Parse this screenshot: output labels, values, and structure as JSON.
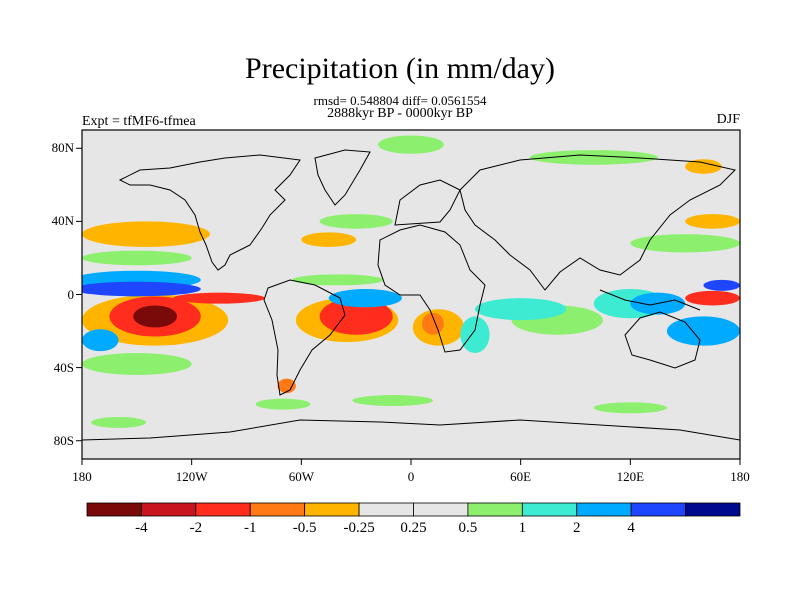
{
  "title": "Precipitation (in mm/day)",
  "stats": "rmsd= 0.548804 diff= 0.0561554",
  "period": "2888kyr BP - 0000kyr BP",
  "experiment": "Expt = tfMF6-tfmea",
  "season": "DJF",
  "lat_ticks": [
    {
      "value": 80,
      "label": "80N"
    },
    {
      "value": 40,
      "label": "40N"
    },
    {
      "value": 0,
      "label": "0"
    },
    {
      "value": -40,
      "label": "40S"
    },
    {
      "value": -80,
      "label": "80S"
    }
  ],
  "lon_ticks": [
    {
      "value": -180,
      "label": "180"
    },
    {
      "value": -120,
      "label": "120W"
    },
    {
      "value": -60,
      "label": "60W"
    },
    {
      "value": 0,
      "label": "0"
    },
    {
      "value": 60,
      "label": "60E"
    },
    {
      "value": 120,
      "label": "120E"
    },
    {
      "value": 180,
      "label": "180"
    }
  ],
  "colorbar": {
    "colors": [
      "#7a0a0a",
      "#c8141e",
      "#ff2d1e",
      "#ff7a14",
      "#ffb400",
      "#e6e6e6",
      "#e6e6e6",
      "#8cf06e",
      "#3cebd2",
      "#00aaff",
      "#1e46ff",
      "#000a8c"
    ],
    "labels": [
      "-4",
      "-2",
      "-1",
      "-0.5",
      "-0.25",
      "0.25",
      "0.5",
      "1",
      "2",
      "4"
    ]
  },
  "map": {
    "background": "#e6e6e6",
    "anomalies": [
      {
        "lon": -140,
        "lat": -12,
        "rx": 12,
        "ry": 6,
        "color": "#7a0a0a"
      },
      {
        "lon": -140,
        "lat": -12,
        "rx": 25,
        "ry": 11,
        "color": "#ff2d1e"
      },
      {
        "lon": -140,
        "lat": -14,
        "rx": 40,
        "ry": 14,
        "color": "#ffb400"
      },
      {
        "lon": -150,
        "lat": 3,
        "rx": 35,
        "ry": 4,
        "color": "#1e46ff"
      },
      {
        "lon": -150,
        "lat": 8,
        "rx": 35,
        "ry": 5,
        "color": "#00aaff"
      },
      {
        "lon": -150,
        "lat": 20,
        "rx": 30,
        "ry": 4,
        "color": "#8cf06e"
      },
      {
        "lon": -145,
        "lat": 33,
        "rx": 35,
        "ry": 7,
        "color": "#ffb400"
      },
      {
        "lon": -170,
        "lat": -25,
        "rx": 10,
        "ry": 6,
        "color": "#00aaff"
      },
      {
        "lon": -150,
        "lat": -38,
        "rx": 30,
        "ry": 6,
        "color": "#8cf06e"
      },
      {
        "lon": -105,
        "lat": -2,
        "rx": 25,
        "ry": 3,
        "color": "#ff2d1e"
      },
      {
        "lon": -30,
        "lat": -12,
        "rx": 20,
        "ry": 10,
        "color": "#ff2d1e"
      },
      {
        "lon": -35,
        "lat": -14,
        "rx": 28,
        "ry": 12,
        "color": "#ffb400"
      },
      {
        "lon": -25,
        "lat": -2,
        "rx": 20,
        "ry": 5,
        "color": "#00aaff"
      },
      {
        "lon": -40,
        "lat": 8,
        "rx": 25,
        "ry": 3,
        "color": "#8cf06e"
      },
      {
        "lon": 15,
        "lat": -18,
        "rx": 14,
        "ry": 10,
        "color": "#ffb400"
      },
      {
        "lon": 12,
        "lat": -16,
        "rx": 6,
        "ry": 6,
        "color": "#ff7a14"
      },
      {
        "lon": 35,
        "lat": -22,
        "rx": 8,
        "ry": 10,
        "color": "#3cebd2"
      },
      {
        "lon": 60,
        "lat": -8,
        "rx": 25,
        "ry": 6,
        "color": "#3cebd2"
      },
      {
        "lon": 80,
        "lat": -14,
        "rx": 25,
        "ry": 8,
        "color": "#8cf06e"
      },
      {
        "lon": 120,
        "lat": -5,
        "rx": 20,
        "ry": 8,
        "color": "#3cebd2"
      },
      {
        "lon": 135,
        "lat": -5,
        "rx": 15,
        "ry": 6,
        "color": "#00aaff"
      },
      {
        "lon": 165,
        "lat": -2,
        "rx": 15,
        "ry": 4,
        "color": "#ff2d1e"
      },
      {
        "lon": 170,
        "lat": 5,
        "rx": 10,
        "ry": 3,
        "color": "#1e46ff"
      },
      {
        "lon": 160,
        "lat": -20,
        "rx": 20,
        "ry": 8,
        "color": "#00aaff"
      },
      {
        "lon": 150,
        "lat": 28,
        "rx": 30,
        "ry": 5,
        "color": "#8cf06e"
      },
      {
        "lon": 165,
        "lat": 40,
        "rx": 15,
        "ry": 4,
        "color": "#ffb400"
      },
      {
        "lon": -30,
        "lat": 40,
        "rx": 20,
        "ry": 4,
        "color": "#8cf06e"
      },
      {
        "lon": -45,
        "lat": 30,
        "rx": 15,
        "ry": 4,
        "color": "#ffb400"
      },
      {
        "lon": 0,
        "lat": 82,
        "rx": 18,
        "ry": 5,
        "color": "#8cf06e"
      },
      {
        "lon": 100,
        "lat": 75,
        "rx": 35,
        "ry": 4,
        "color": "#8cf06e"
      },
      {
        "lon": 160,
        "lat": 70,
        "rx": 10,
        "ry": 4,
        "color": "#ffb400"
      },
      {
        "lon": -68,
        "lat": -50,
        "rx": 5,
        "ry": 4,
        "color": "#ff7a14"
      },
      {
        "lon": -70,
        "lat": -60,
        "rx": 15,
        "ry": 3,
        "color": "#8cf06e"
      },
      {
        "lon": -10,
        "lat": -58,
        "rx": 22,
        "ry": 3,
        "color": "#8cf06e"
      },
      {
        "lon": 120,
        "lat": -62,
        "rx": 20,
        "ry": 3,
        "color": "#8cf06e"
      },
      {
        "lon": -160,
        "lat": -70,
        "rx": 15,
        "ry": 3,
        "color": "#8cf06e"
      }
    ]
  }
}
